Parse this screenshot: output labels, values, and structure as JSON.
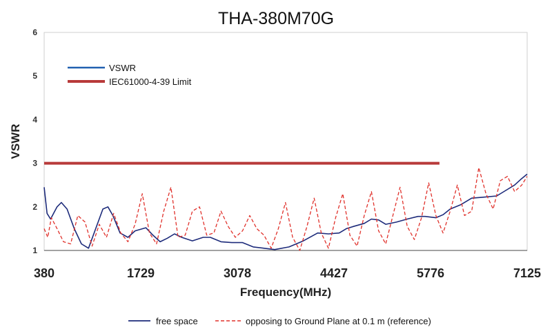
{
  "chart_data": {
    "type": "line",
    "title": "THA-380M70G",
    "xlabel": "Frequency(MHz)",
    "ylabel": "VSWR",
    "xlim": [
      380,
      7125
    ],
    "ylim": [
      1,
      6
    ],
    "x_ticks": [
      "380",
      "1729",
      "3078",
      "4427",
      "5776",
      "7125"
    ],
    "y_ticks": [
      "1",
      "2",
      "3",
      "4",
      "5",
      "6"
    ],
    "grid": false,
    "legend_top": {
      "placement": "top-left",
      "entries": [
        {
          "label": "VSWR",
          "color": "#2060b0"
        },
        {
          "label": "IEC61000-4-39 Limit",
          "color": "#b83a3a"
        }
      ]
    },
    "legend_bottom": {
      "placement": "bottom",
      "entries": [
        {
          "label": "free space",
          "color": "#1c2a7a",
          "dash": false
        },
        {
          "label": "opposing to Ground Plane at 0.1 m (reference)",
          "color": "#e0302a",
          "dash": true
        }
      ]
    },
    "series": [
      {
        "name": "IEC61000-4-39 Limit",
        "color": "#b83a3a",
        "x": [
          380,
          5900
        ],
        "y": [
          3.0,
          3.0
        ]
      },
      {
        "name": "free space",
        "color": "#1c2a7a",
        "x": [
          380,
          420,
          470,
          560,
          620,
          700,
          800,
          900,
          1000,
          1100,
          1200,
          1270,
          1340,
          1440,
          1550,
          1650,
          1800,
          1900,
          2000,
          2100,
          2200,
          2300,
          2450,
          2600,
          2700,
          2850,
          3000,
          3150,
          3300,
          3450,
          3600,
          3800,
          4000,
          4200,
          4350,
          4500,
          4600,
          4700,
          4850,
          4950,
          5050,
          5150,
          5300,
          5450,
          5600,
          5700,
          5850,
          5950,
          6050,
          6200,
          6350,
          6500,
          6700,
          6850,
          6950,
          7050,
          7125
        ],
        "y": [
          2.45,
          1.85,
          1.72,
          2.0,
          2.1,
          1.95,
          1.5,
          1.15,
          1.05,
          1.5,
          1.95,
          2.0,
          1.8,
          1.4,
          1.3,
          1.45,
          1.52,
          1.35,
          1.2,
          1.28,
          1.38,
          1.3,
          1.22,
          1.3,
          1.3,
          1.2,
          1.18,
          1.18,
          1.08,
          1.05,
          1.02,
          1.08,
          1.22,
          1.4,
          1.38,
          1.4,
          1.5,
          1.55,
          1.62,
          1.72,
          1.7,
          1.6,
          1.65,
          1.72,
          1.78,
          1.78,
          1.75,
          1.82,
          1.95,
          2.05,
          2.2,
          2.22,
          2.25,
          2.4,
          2.5,
          2.65,
          2.75
        ]
      },
      {
        "name": "opposing to Ground Plane at 0.1 m (reference)",
        "color": "#e0302a",
        "x": [
          380,
          430,
          480,
          560,
          650,
          750,
          850,
          950,
          1050,
          1150,
          1250,
          1350,
          1450,
          1550,
          1650,
          1750,
          1850,
          1950,
          2050,
          2150,
          2250,
          2350,
          2450,
          2550,
          2650,
          2750,
          2850,
          2950,
          3050,
          3150,
          3250,
          3350,
          3450,
          3550,
          3650,
          3750,
          3850,
          3950,
          4050,
          4150,
          4250,
          4350,
          4450,
          4550,
          4650,
          4750,
          4850,
          4950,
          5050,
          5150,
          5250,
          5350,
          5450,
          5550,
          5650,
          5750,
          5850,
          5950,
          6050,
          6150,
          6250,
          6350,
          6450,
          6550,
          6650,
          6750,
          6850,
          6950,
          7050,
          7125
        ],
        "y": [
          1.5,
          1.3,
          1.75,
          1.5,
          1.2,
          1.15,
          1.8,
          1.65,
          1.1,
          1.6,
          1.3,
          1.85,
          1.4,
          1.2,
          1.6,
          2.3,
          1.4,
          1.15,
          1.9,
          2.45,
          1.3,
          1.35,
          1.9,
          2.0,
          1.35,
          1.4,
          1.9,
          1.55,
          1.3,
          1.45,
          1.8,
          1.5,
          1.35,
          1.05,
          1.5,
          2.1,
          1.3,
          1.0,
          1.55,
          2.2,
          1.4,
          1.05,
          1.75,
          2.3,
          1.35,
          1.1,
          1.8,
          2.35,
          1.45,
          1.15,
          1.8,
          2.45,
          1.55,
          1.25,
          1.75,
          2.55,
          1.8,
          1.4,
          1.9,
          2.5,
          1.8,
          1.9,
          2.9,
          2.3,
          1.95,
          2.6,
          2.7,
          2.35,
          2.5,
          2.7
        ]
      }
    ]
  }
}
